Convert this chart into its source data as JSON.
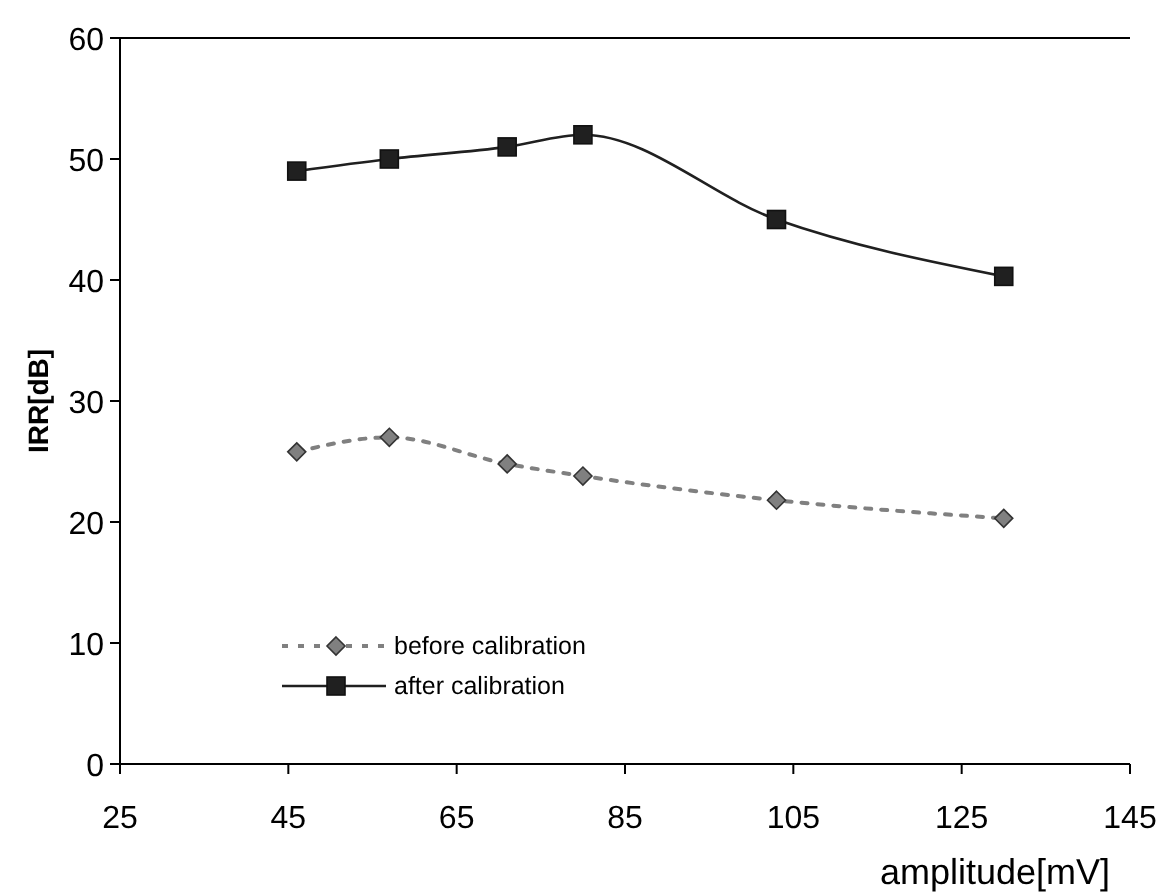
{
  "chart_data": {
    "type": "line",
    "xlabel": "amplitude[mV]",
    "ylabel": "IRR[dB]",
    "x": [
      46,
      57,
      71,
      80,
      103,
      130
    ],
    "xlim": [
      25,
      145
    ],
    "xticks": [
      25,
      45,
      65,
      85,
      105,
      125,
      145
    ],
    "ylim": [
      0,
      60
    ],
    "yticks": [
      0,
      10,
      20,
      30,
      40,
      50,
      60
    ],
    "grid": false,
    "legend": "bottom left",
    "series": [
      {
        "name": "before calibration",
        "color": "#808080",
        "values": [
          25.8,
          27,
          24.8,
          23.8,
          21.8,
          20.3
        ],
        "marker": "diamond",
        "line_style": "dotted"
      },
      {
        "name": "after calibration",
        "color": "#202020",
        "values": [
          49,
          50,
          51,
          52,
          45,
          40.3
        ],
        "marker": "square",
        "line_style": "solid"
      }
    ]
  }
}
